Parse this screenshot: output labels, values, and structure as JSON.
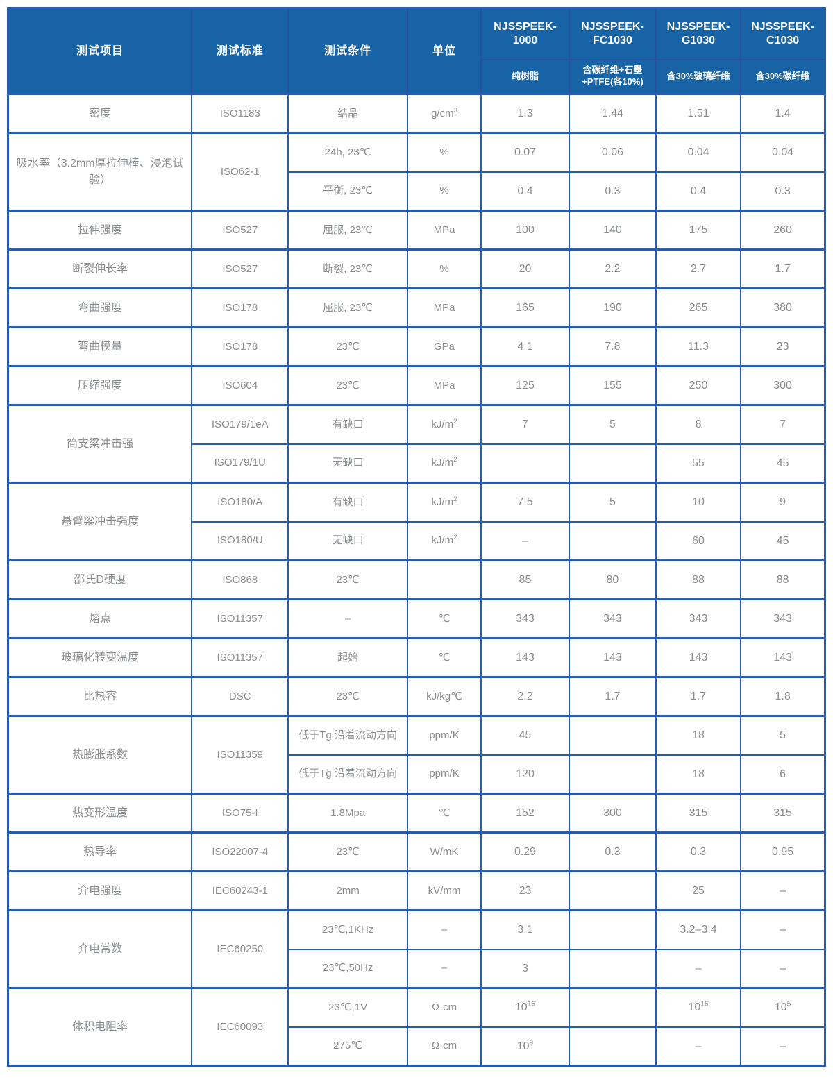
{
  "colors": {
    "header_bg": "#1763a6",
    "grid": "#2a5cae",
    "text": "#8a8d90",
    "header_text": "#ffffff"
  },
  "table": {
    "header": {
      "item": "测试项目",
      "standard": "测试标准",
      "condition": "测试条件",
      "unit": "单位",
      "products": [
        {
          "name": "NJSSPEEK-1000",
          "desc": "纯树脂"
        },
        {
          "name": "NJSSPEEK-FC1030",
          "desc": "含碳纤维+石墨+PTFE(各10%)"
        },
        {
          "name": "NJSSPEEK-G1030",
          "desc": "含30%玻璃纤维"
        },
        {
          "name": "NJSSPEEK-C1030",
          "desc": "含30%碳纤维"
        }
      ]
    },
    "groups": [
      {
        "item": "密度",
        "standard": "ISO1183",
        "rows": [
          {
            "cond": "结晶",
            "unit": "g/cm^3",
            "vals": [
              "1.3",
              "1.44",
              "1.51",
              "1.4"
            ]
          }
        ]
      },
      {
        "item": "吸水率（3.2mm厚拉伸棒、浸泡试验）",
        "standard": "ISO62-1",
        "rows": [
          {
            "cond": "24h, 23℃",
            "unit": "%",
            "vals": [
              "0.07",
              "0.06",
              "0.04",
              "0.04"
            ]
          },
          {
            "cond": "平衡, 23℃",
            "unit": "%",
            "vals": [
              "0.4",
              "0.3",
              "0.4",
              "0.3"
            ]
          }
        ]
      },
      {
        "item": "拉伸强度",
        "standard": "ISO527",
        "rows": [
          {
            "cond": "屈服, 23℃",
            "unit": "MPa",
            "vals": [
              "100",
              "140",
              "175",
              "260"
            ]
          }
        ]
      },
      {
        "item": "断裂伸长率",
        "standard": "ISO527",
        "rows": [
          {
            "cond": "断裂, 23℃",
            "unit": "%",
            "vals": [
              "20",
              "2.2",
              "2.7",
              "1.7"
            ]
          }
        ]
      },
      {
        "item": "弯曲强度",
        "standard": "ISO178",
        "rows": [
          {
            "cond": "屈服, 23℃",
            "unit": "MPa",
            "vals": [
              "165",
              "190",
              "265",
              "380"
            ]
          }
        ]
      },
      {
        "item": "弯曲模量",
        "standard": "ISO178",
        "rows": [
          {
            "cond": "23℃",
            "unit": "GPa",
            "vals": [
              "4.1",
              "7.8",
              "11.3",
              "23"
            ]
          }
        ]
      },
      {
        "item": "压缩强度",
        "standard": "ISO604",
        "rows": [
          {
            "cond": "23℃",
            "unit": "MPa",
            "vals": [
              "125",
              "155",
              "250",
              "300"
            ]
          }
        ]
      },
      {
        "item": "简支梁冲击强",
        "rows": [
          {
            "standard": "ISO179/1eA",
            "cond": "有缺口",
            "unit": "kJ/m^2",
            "vals": [
              "7",
              "5",
              "8",
              "7"
            ]
          },
          {
            "standard": "ISO179/1U",
            "cond": "无缺口",
            "unit": "kJ/m^2",
            "vals": [
              "",
              "",
              "55",
              "45"
            ]
          }
        ]
      },
      {
        "item": "悬臂梁冲击强度",
        "rows": [
          {
            "standard": "ISO180/A",
            "cond": "有缺口",
            "unit": "kJ/m^2",
            "vals": [
              "7.5",
              "5",
              "10",
              "9"
            ]
          },
          {
            "standard": "ISO180/U",
            "cond": "无缺口",
            "unit": "kJ/m^2",
            "vals": [
              "–",
              "",
              "60",
              "45"
            ]
          }
        ]
      },
      {
        "item": "邵氏D硬度",
        "standard": "ISO868",
        "rows": [
          {
            "cond": "23℃",
            "unit": "",
            "vals": [
              "85",
              "80",
              "88",
              "88"
            ]
          }
        ]
      },
      {
        "item": "熔点",
        "standard": "ISO11357",
        "rows": [
          {
            "cond": "–",
            "unit": "℃",
            "vals": [
              "343",
              "343",
              "343",
              "343"
            ]
          }
        ]
      },
      {
        "item": "玻璃化转变温度",
        "standard": "ISO11357",
        "rows": [
          {
            "cond": "起始",
            "unit": "℃",
            "vals": [
              "143",
              "143",
              "143",
              "143"
            ]
          }
        ]
      },
      {
        "item": "比热容",
        "standard": "DSC",
        "rows": [
          {
            "cond": "23℃",
            "unit": "kJ/kg℃",
            "vals": [
              "2.2",
              "1.7",
              "1.7",
              "1.8"
            ]
          }
        ]
      },
      {
        "item": "热膨胀系数",
        "standard": "ISO11359",
        "rows": [
          {
            "cond": "低于Tg 沿着流动方向",
            "unit": "ppm/K",
            "vals": [
              "45",
              "",
              "18",
              "5"
            ]
          },
          {
            "cond": "低于Tg 沿着流动方向",
            "unit": "ppm/K",
            "vals": [
              "120",
              "",
              "18",
              "6"
            ]
          }
        ]
      },
      {
        "item": "热变形温度",
        "standard": "ISO75-f",
        "rows": [
          {
            "cond": "1.8Mpa",
            "unit": "℃",
            "vals": [
              "152",
              "300",
              "315",
              "315"
            ]
          }
        ]
      },
      {
        "item": "热导率",
        "standard": "ISO22007-4",
        "rows": [
          {
            "cond": "23℃",
            "unit": "W/mK",
            "vals": [
              "0.29",
              "0.3",
              "0.3",
              "0.95"
            ]
          }
        ]
      },
      {
        "item": "介电强度",
        "standard": "IEC60243-1",
        "rows": [
          {
            "cond": "2mm",
            "unit": "kV/mm",
            "vals": [
              "23",
              "",
              "25",
              "–"
            ]
          }
        ]
      },
      {
        "item": "介电常数",
        "standard": "IEC60250",
        "rows": [
          {
            "cond": "23℃,1KHz",
            "unit": "–",
            "vals": [
              "3.1",
              "",
              "3.2–3.4",
              "–"
            ]
          },
          {
            "cond": "23℃,50Hz",
            "unit": "–",
            "vals": [
              "3",
              "",
              "–",
              "–"
            ]
          }
        ]
      },
      {
        "item": "体积电阻率",
        "standard": "IEC60093",
        "rows": [
          {
            "cond": "23℃,1V",
            "unit": "Ω·cm",
            "vals": [
              "10^16",
              "",
              "10^16",
              "10^5"
            ]
          },
          {
            "cond": "275℃",
            "unit": "Ω·cm",
            "vals": [
              "10^9",
              "",
              "–",
              "–"
            ]
          }
        ]
      }
    ]
  }
}
